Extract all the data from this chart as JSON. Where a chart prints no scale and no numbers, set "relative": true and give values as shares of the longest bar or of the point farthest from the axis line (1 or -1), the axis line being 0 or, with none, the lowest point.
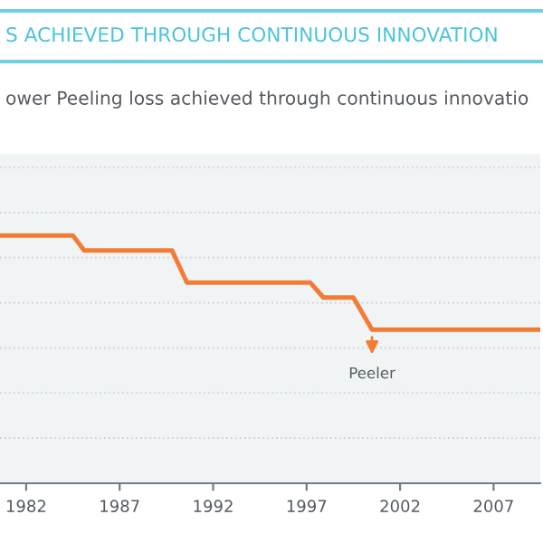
{
  "chart_data": {
    "type": "line",
    "title": "S ACHIEVED THROUGH CONTINUOUS INNOVATION",
    "subtitle": "ower Peeling loss achieved through continuous innovatio",
    "relative": true,
    "grid": "y",
    "line_style": "solid",
    "marker": "none",
    "x": [
      1980.6,
      1984.5,
      1985.1,
      1989.8,
      1990.6,
      1997.2,
      1997.9,
      1999.5,
      2000.5,
      2009.5
    ],
    "xlim": [
      1980.6,
      2009.5
    ],
    "xticks": [
      1982,
      1987,
      1992,
      1997,
      2002,
      2007
    ],
    "series": [
      {
        "color": "#f47b35",
        "values": [
          1,
          1,
          0.94,
          0.94,
          0.81,
          0.81,
          0.75,
          0.75,
          0.62,
          0.62
        ]
      }
    ],
    "annotations": [
      {
        "text": "Peeler",
        "x": 2000.5,
        "y": 0.62
      }
    ]
  }
}
